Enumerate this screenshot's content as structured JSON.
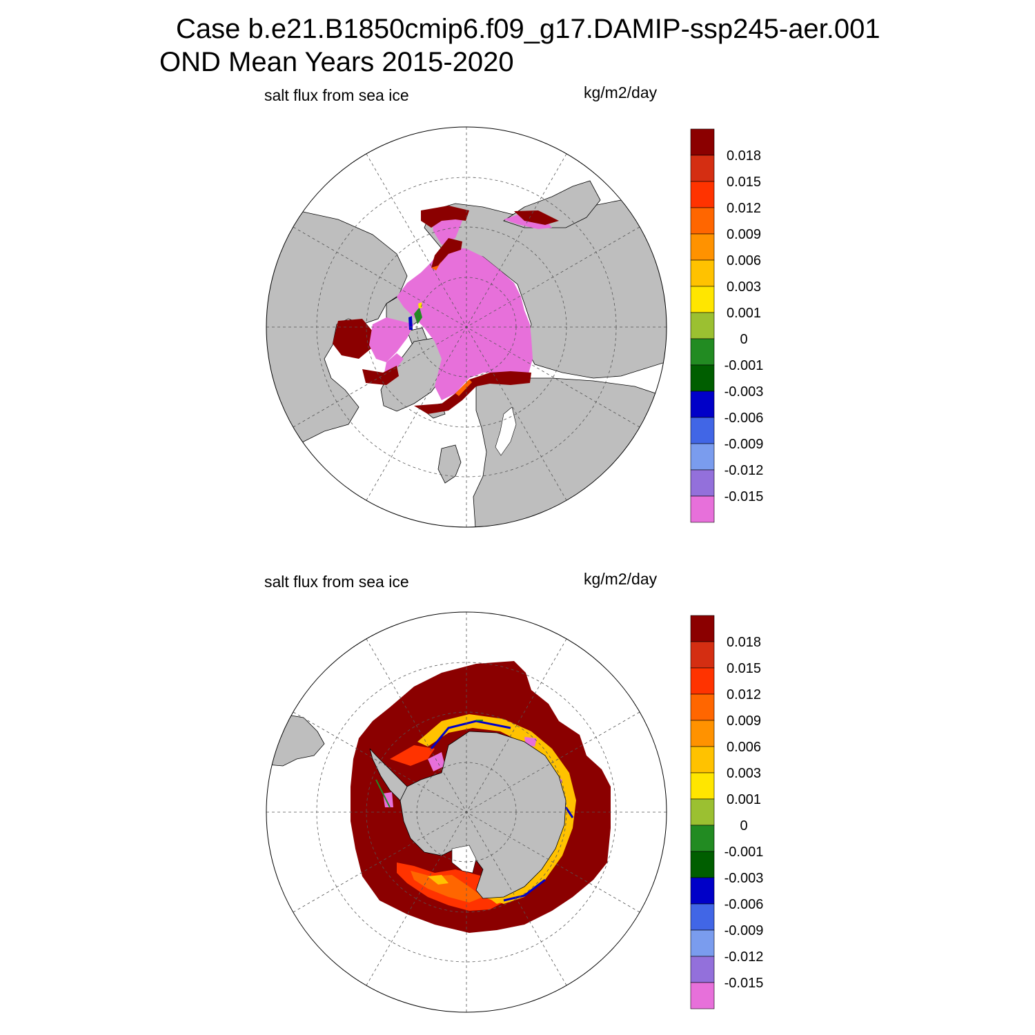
{
  "header": {
    "case_line": "Case b.e21.B1850cmip6.f09_g17.DAMIP-ssp245-aer.001",
    "period_line": "OND Mean   Years 2015-2020"
  },
  "panels": [
    {
      "id": "north",
      "hemisphere": "Arctic",
      "variable": "salt flux from sea ice",
      "units": "kg/m2/day"
    },
    {
      "id": "south",
      "hemisphere": "Antarctic",
      "variable": "salt flux from sea ice",
      "units": "kg/m2/day"
    }
  ],
  "colorbar": {
    "labels": [
      "0.018",
      "0.015",
      "0.012",
      "0.009",
      "0.006",
      "0.003",
      "0.001",
      "0",
      "-0.001",
      "-0.003",
      "-0.006",
      "-0.009",
      "-0.012",
      "-0.015"
    ],
    "colors": [
      "#8b0000",
      "#d42e12",
      "#ff3300",
      "#ff6600",
      "#ff9200",
      "#ffc200",
      "#ffe600",
      "#9bc031",
      "#228b22",
      "#005e00",
      "#0000c8",
      "#4166e6",
      "#7a9cee",
      "#9370db",
      "#e770da"
    ]
  },
  "map_colors": {
    "land": "#bebebe",
    "ocean": "#ffffff",
    "grid": "#555555"
  }
}
